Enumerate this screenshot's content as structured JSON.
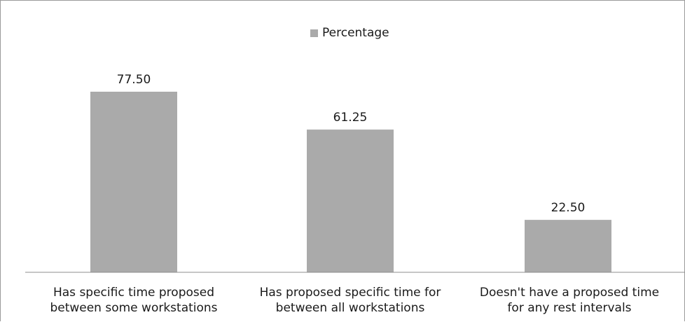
{
  "chart_data": {
    "type": "bar",
    "legend": [
      "Percentage"
    ],
    "legend_position": "top",
    "categories": [
      [
        "Has specific time proposed",
        "between some workstations"
      ],
      [
        "Has proposed specific time for",
        "between all workstations"
      ],
      [
        "Doesn't have a proposed time",
        "for any rest intervals"
      ]
    ],
    "series": [
      {
        "name": "Percentage",
        "values": [
          77.5,
          61.25,
          22.5
        ],
        "labels": [
          "77.50",
          "61.25",
          "22.50"
        ],
        "color": "#aaaaaa"
      }
    ],
    "ylim": [
      0,
      100
    ],
    "grid": false,
    "value_axis_visible": false
  }
}
